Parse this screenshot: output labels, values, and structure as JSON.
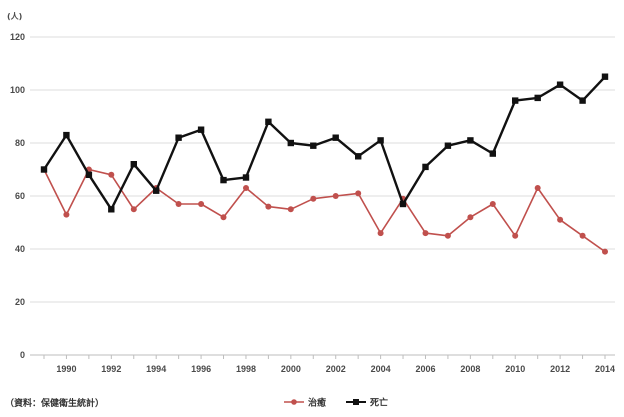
{
  "chart_data": {
    "type": "line",
    "ylabel": "(人)",
    "x": [
      1989,
      1990,
      1991,
      1992,
      1993,
      1994,
      1995,
      1996,
      1997,
      1998,
      1999,
      2000,
      2001,
      2002,
      2003,
      2004,
      2005,
      2006,
      2007,
      2008,
      2009,
      2010,
      2011,
      2012,
      2013,
      2014
    ],
    "xticks": [
      1990,
      1992,
      1994,
      1996,
      1998,
      2000,
      2002,
      2004,
      2006,
      2008,
      2010,
      2012,
      2014
    ],
    "ylim": [
      0,
      120
    ],
    "yticks": [
      0,
      20,
      40,
      60,
      80,
      100,
      120
    ],
    "grid": true,
    "legend": "bottom",
    "series": [
      {
        "name": "治癒",
        "color": "#c0504d",
        "marker": "circle",
        "values": [
          70,
          53,
          70,
          68,
          55,
          63,
          57,
          57,
          52,
          63,
          56,
          55,
          59,
          60,
          61,
          46,
          59,
          46,
          45,
          52,
          57,
          45,
          63,
          51,
          45,
          39
        ]
      },
      {
        "name": "死亡",
        "color": "#111111",
        "marker": "square",
        "values": [
          70,
          83,
          68,
          55,
          72,
          62,
          82,
          85,
          66,
          67,
          88,
          80,
          79,
          82,
          75,
          81,
          57,
          71,
          79,
          81,
          76,
          96,
          97,
          102,
          96,
          105
        ]
      }
    ]
  },
  "source_note": "（資料：保健衛生統計）"
}
